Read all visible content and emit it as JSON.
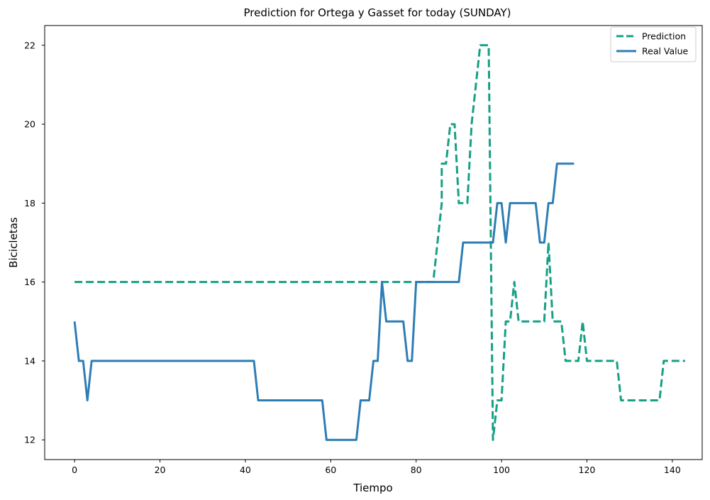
{
  "chart_data": {
    "type": "line",
    "title": "Prediction for Ortega y Gasset for today (SUNDAY)",
    "xlabel": "Tiempo",
    "ylabel": "Bicicletas",
    "xlim": [
      -7,
      147
    ],
    "ylim": [
      11.5,
      22.5
    ],
    "xticks": [
      0,
      20,
      40,
      60,
      80,
      100,
      120,
      140
    ],
    "yticks": [
      12,
      14,
      16,
      18,
      20,
      22
    ],
    "grid": false,
    "legend_position": "top-right",
    "series": [
      {
        "name": "Prediction",
        "color": "#16a085",
        "style": "dashed",
        "points": [
          [
            0,
            16
          ],
          [
            84,
            16
          ],
          [
            86,
            18
          ],
          [
            86,
            19
          ],
          [
            87,
            19
          ],
          [
            88,
            20
          ],
          [
            89,
            20
          ],
          [
            90,
            18
          ],
          [
            92,
            18
          ],
          [
            93,
            20
          ],
          [
            95,
            22
          ],
          [
            97,
            22
          ],
          [
            98,
            12
          ],
          [
            98.5,
            12.5
          ],
          [
            99,
            13
          ],
          [
            100,
            13
          ],
          [
            101,
            15
          ],
          [
            102,
            15
          ],
          [
            103,
            16
          ],
          [
            104,
            15
          ],
          [
            110,
            15
          ],
          [
            111,
            17
          ],
          [
            112,
            15
          ],
          [
            113,
            15
          ],
          [
            114,
            15
          ],
          [
            115,
            14
          ],
          [
            118,
            14
          ],
          [
            119,
            15
          ],
          [
            120,
            14
          ],
          [
            127,
            14
          ],
          [
            128,
            13
          ],
          [
            137,
            13
          ],
          [
            138,
            14
          ],
          [
            143,
            14
          ]
        ]
      },
      {
        "name": "Real Value",
        "color": "#2e7db5",
        "style": "solid",
        "points": [
          [
            0,
            15
          ],
          [
            1,
            14
          ],
          [
            2,
            14
          ],
          [
            3,
            13
          ],
          [
            4,
            14
          ],
          [
            42,
            14
          ],
          [
            43,
            13
          ],
          [
            58,
            13
          ],
          [
            59,
            12
          ],
          [
            66,
            12
          ],
          [
            67,
            13
          ],
          [
            69,
            13
          ],
          [
            70,
            14
          ],
          [
            71,
            14
          ],
          [
            72,
            16
          ],
          [
            73,
            15
          ],
          [
            77,
            15
          ],
          [
            78,
            14
          ],
          [
            79,
            14
          ],
          [
            80,
            16
          ],
          [
            90,
            16
          ],
          [
            91,
            17
          ],
          [
            97,
            17
          ],
          [
            98,
            17
          ],
          [
            99,
            18
          ],
          [
            100,
            18
          ],
          [
            101,
            17
          ],
          [
            102,
            18
          ],
          [
            108,
            18
          ],
          [
            109,
            17
          ],
          [
            110,
            17
          ],
          [
            111,
            18
          ],
          [
            112,
            18
          ],
          [
            113,
            19
          ],
          [
            117,
            19
          ]
        ]
      }
    ]
  }
}
